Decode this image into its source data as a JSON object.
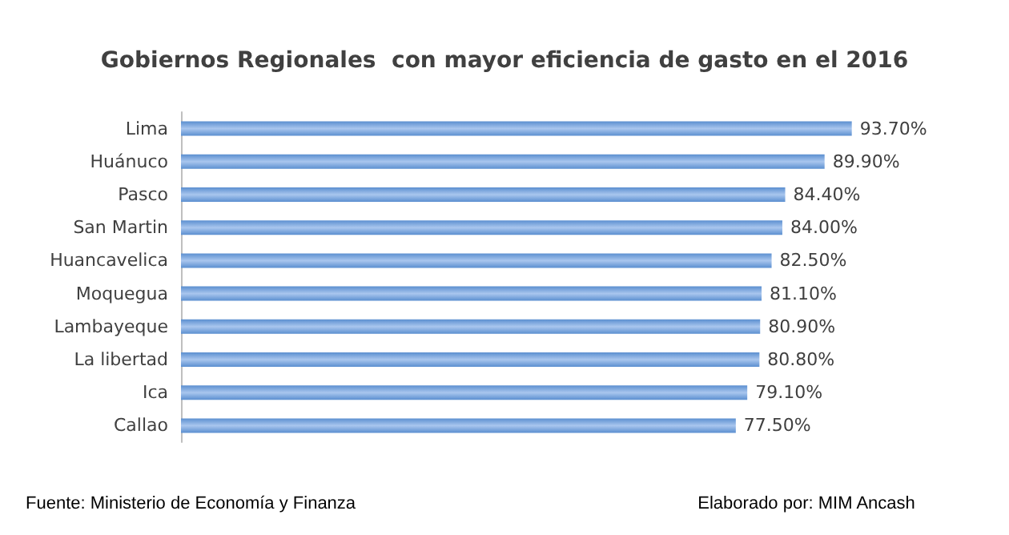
{
  "chart_data": {
    "type": "bar",
    "orientation": "horizontal",
    "title": "Gobiernos Regionales  con mayor eficiencia de gasto en el 2016",
    "categories": [
      "Lima",
      "Huánuco",
      "Pasco",
      "San Martin",
      "Huancavelica",
      "Moquegua",
      "Lambayeque",
      "La libertad",
      "Ica",
      "Callao"
    ],
    "values": [
      93.7,
      89.9,
      84.4,
      84.0,
      82.5,
      81.1,
      80.9,
      80.8,
      79.1,
      77.5
    ],
    "value_labels": [
      "93.70%",
      "89.90%",
      "84.40%",
      "84.00%",
      "82.50%",
      "81.10%",
      "80.90%",
      "80.80%",
      "79.10%",
      "77.50%"
    ],
    "color": "#5b8fd0",
    "tick_labels": "y",
    "annotations": [
      "Fuente: Ministerio de Economía y Finanza",
      "Elaborado por: MIM Ancash"
    ]
  }
}
